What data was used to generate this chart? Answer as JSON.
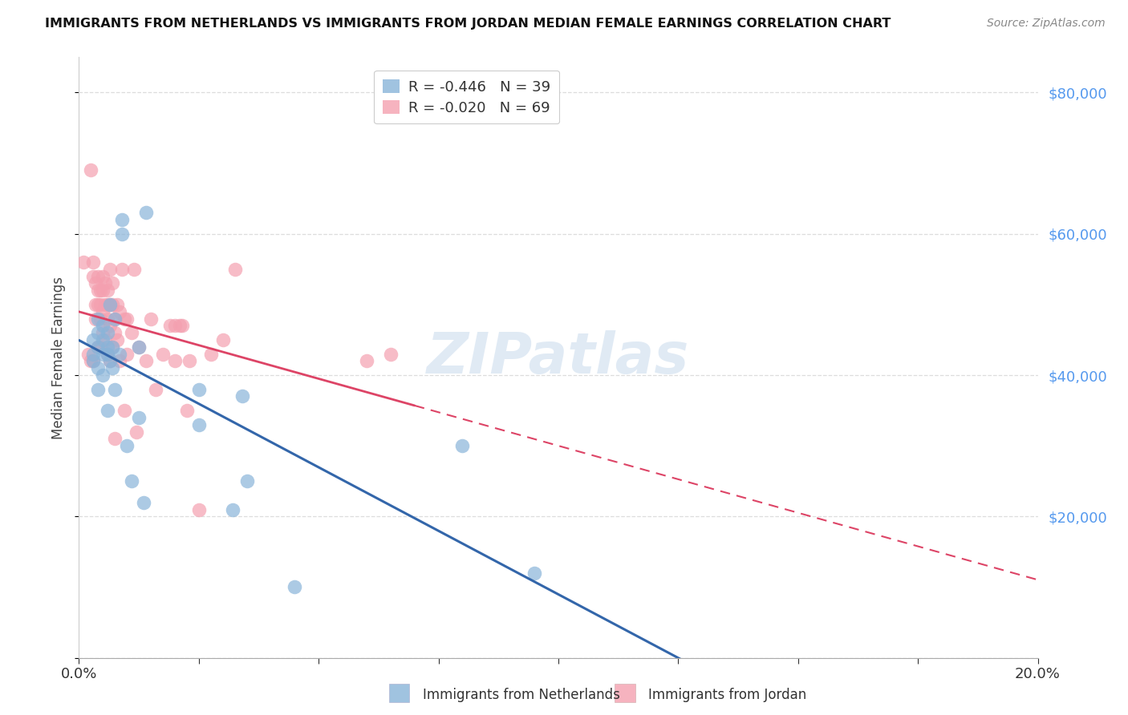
{
  "title": "IMMIGRANTS FROM NETHERLANDS VS IMMIGRANTS FROM JORDAN MEDIAN FEMALE EARNINGS CORRELATION CHART",
  "source": "Source: ZipAtlas.com",
  "ylabel": "Median Female Earnings",
  "y_ticks": [
    0,
    20000,
    40000,
    60000,
    80000
  ],
  "x_range": [
    0.0,
    0.2
  ],
  "y_range": [
    0,
    85000
  ],
  "netherlands_R": -0.446,
  "netherlands_N": 39,
  "jordan_R": -0.02,
  "jordan_N": 69,
  "netherlands_color": "#89b4d9",
  "jordan_color": "#f4a0b0",
  "netherlands_line_color": "#3366aa",
  "jordan_line_color": "#dd4466",
  "watermark_text": "ZIPatlas",
  "watermark_color": "#99bbdd",
  "background_color": "#ffffff",
  "grid_color": "#dddddd",
  "right_tick_color": "#5599ee",
  "legend_R_color": "#cc2244",
  "legend_N_color": "#3355bb",
  "netherlands_x": [
    0.003,
    0.003,
    0.003,
    0.004,
    0.004,
    0.004,
    0.004,
    0.004,
    0.005,
    0.005,
    0.005,
    0.005,
    0.006,
    0.006,
    0.006,
    0.006,
    0.0065,
    0.0065,
    0.007,
    0.007,
    0.0075,
    0.0075,
    0.0085,
    0.009,
    0.009,
    0.01,
    0.011,
    0.0125,
    0.0125,
    0.0135,
    0.014,
    0.025,
    0.025,
    0.032,
    0.034,
    0.035,
    0.045,
    0.08,
    0.095
  ],
  "netherlands_y": [
    45000,
    43000,
    42000,
    48000,
    46000,
    44000,
    41000,
    38000,
    47000,
    45000,
    43000,
    40000,
    46000,
    44000,
    43000,
    35000,
    50000,
    42000,
    44000,
    41000,
    48000,
    38000,
    43000,
    62000,
    60000,
    30000,
    25000,
    44000,
    34000,
    22000,
    63000,
    38000,
    33000,
    21000,
    37000,
    25000,
    10000,
    30000,
    12000
  ],
  "jordan_x": [
    0.001,
    0.002,
    0.0025,
    0.0025,
    0.003,
    0.003,
    0.003,
    0.0035,
    0.0035,
    0.0035,
    0.004,
    0.004,
    0.004,
    0.004,
    0.0045,
    0.0045,
    0.0045,
    0.0045,
    0.005,
    0.005,
    0.005,
    0.005,
    0.0055,
    0.0055,
    0.0055,
    0.006,
    0.006,
    0.006,
    0.006,
    0.0065,
    0.0065,
    0.0065,
    0.0065,
    0.007,
    0.007,
    0.007,
    0.0075,
    0.0075,
    0.0075,
    0.008,
    0.008,
    0.0085,
    0.0085,
    0.009,
    0.0095,
    0.0095,
    0.01,
    0.01,
    0.011,
    0.0115,
    0.012,
    0.0125,
    0.014,
    0.015,
    0.016,
    0.0175,
    0.019,
    0.02,
    0.02,
    0.021,
    0.0215,
    0.0225,
    0.023,
    0.025,
    0.0275,
    0.03,
    0.0325,
    0.06,
    0.065
  ],
  "jordan_y": [
    56000,
    43000,
    69000,
    42000,
    56000,
    54000,
    42000,
    53000,
    50000,
    48000,
    54000,
    52000,
    50000,
    44000,
    52000,
    50000,
    48000,
    44000,
    54000,
    52000,
    49000,
    46000,
    53000,
    50000,
    45000,
    52000,
    50000,
    48000,
    43000,
    55000,
    50000,
    47000,
    42000,
    53000,
    50000,
    44000,
    48000,
    46000,
    31000,
    50000,
    45000,
    49000,
    42000,
    55000,
    48000,
    35000,
    48000,
    43000,
    46000,
    55000,
    32000,
    44000,
    42000,
    48000,
    38000,
    43000,
    47000,
    47000,
    42000,
    47000,
    47000,
    35000,
    42000,
    21000,
    43000,
    45000,
    55000,
    42000,
    43000
  ]
}
